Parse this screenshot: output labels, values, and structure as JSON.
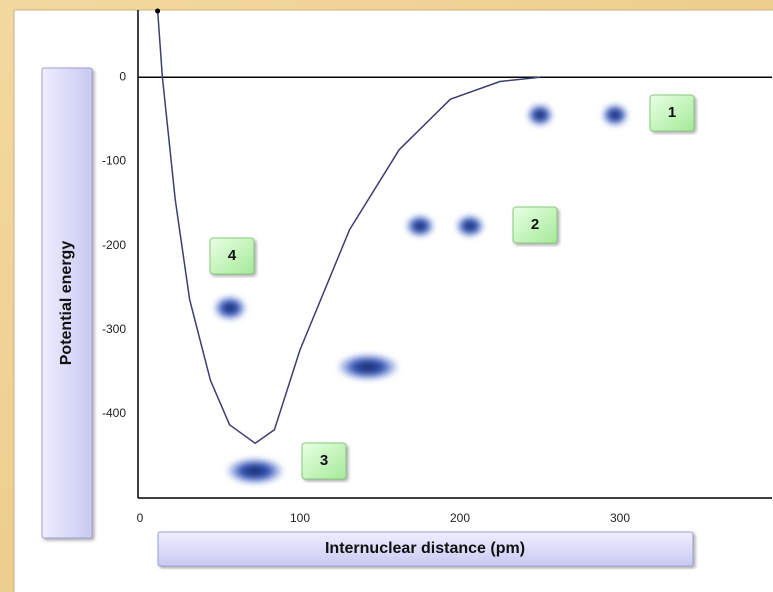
{
  "chart_data": {
    "type": "line",
    "x_label": "Internuclear distance (pm)",
    "y_label": "Potential energy",
    "x": [
      11,
      14,
      22,
      31,
      44,
      56,
      72,
      84,
      100,
      131,
      162,
      194,
      225,
      250
    ],
    "series": [
      {
        "color": "#3d3d70",
        "values": [
          80,
          0,
          -145,
          -264,
          -360,
          -413,
          -435,
          -419,
          -324,
          -181,
          -86,
          -26,
          -5,
          0
        ]
      }
    ],
    "xlim": [
      0,
      395
    ],
    "ylim": [
      -500,
      80
    ],
    "xticks": [
      0,
      100,
      200,
      300
    ],
    "yticks": [
      0,
      -100,
      -200,
      -300,
      -400
    ],
    "zero_line": true,
    "annotations": [
      "1",
      "2",
      "3",
      "4"
    ]
  }
}
